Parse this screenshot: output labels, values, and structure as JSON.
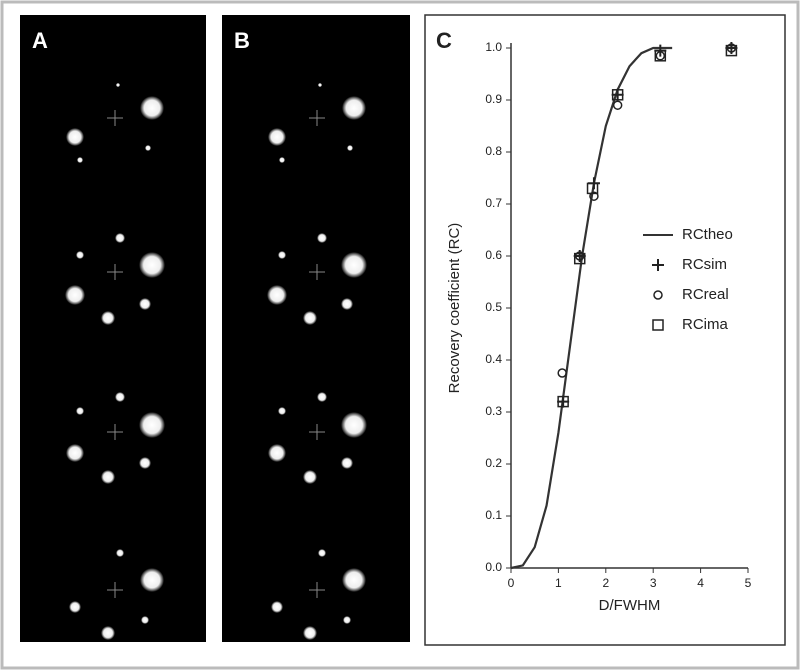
{
  "panel_labels": [
    "A",
    "B",
    "C"
  ],
  "chart_data": {
    "type": "scatter",
    "xlabel": "D/FWHM",
    "ylabel": "Recovery coefficient (RC)",
    "xlim": [
      0,
      5
    ],
    "ylim": [
      0,
      1
    ],
    "xticks": [
      0,
      1,
      2,
      3,
      4,
      5
    ],
    "yticks": [
      {
        "value": 0,
        "label": "0.0"
      },
      0.1,
      0.2,
      0.3,
      0.4,
      0.5,
      0.6,
      0.7,
      0.8,
      0.9,
      {
        "value": 1,
        "label": "1.0"
      }
    ],
    "legend": "center right",
    "series": [
      {
        "name": "RCtheo",
        "color": "#333333",
        "marker": "line",
        "x": [
          0,
          0.25,
          0.5,
          0.75,
          1.0,
          1.25,
          1.5,
          1.75,
          2.0,
          2.25,
          2.5,
          2.75,
          3.0,
          3.4
        ],
        "values": [
          0,
          0.005,
          0.04,
          0.12,
          0.26,
          0.43,
          0.6,
          0.74,
          0.85,
          0.92,
          0.965,
          0.99,
          1.0,
          1.0
        ]
      },
      {
        "name": "RCsim",
        "color": "#222222",
        "marker": "plus",
        "x": [
          1.1,
          1.45,
          1.75,
          2.25,
          3.15,
          4.65
        ],
        "values": [
          0.32,
          0.6,
          0.74,
          0.91,
          0.995,
          1.0
        ]
      },
      {
        "name": "RCreal",
        "color": "#222222",
        "marker": "circle",
        "x": [
          1.08,
          1.45,
          1.75,
          2.25,
          3.15,
          4.65
        ],
        "values": [
          0.375,
          0.6,
          0.715,
          0.89,
          0.985,
          1.0
        ]
      },
      {
        "name": "RCima",
        "color": "#222222",
        "marker": "square",
        "x": [
          1.1,
          1.45,
          1.72,
          2.25,
          3.15,
          4.65
        ],
        "values": [
          0.32,
          0.595,
          0.73,
          0.91,
          0.985,
          0.995
        ]
      }
    ]
  }
}
